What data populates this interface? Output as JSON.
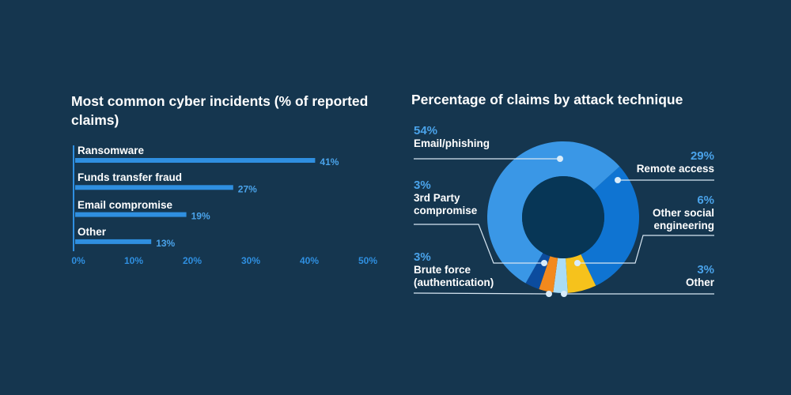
{
  "chart_data": [
    {
      "type": "bar",
      "orientation": "horizontal",
      "title": "Most common cyber incidents (% of reported claims)",
      "categories": [
        "Ransomware",
        "Funds transfer fraud",
        "Email compromise",
        "Other"
      ],
      "values": [
        41,
        27,
        19,
        13
      ],
      "data_labels": [
        "41%",
        "27%",
        "19%",
        "13%"
      ],
      "xlim": [
        0,
        50
      ],
      "x_ticks": [
        "0%",
        "10%",
        "20%",
        "30%",
        "40%",
        "50%"
      ],
      "grid": false,
      "color": "#2f8fe0"
    },
    {
      "type": "pie",
      "donut": true,
      "title": "Percentage of claims by attack technique",
      "slices": [
        {
          "label": "Email/phishing",
          "value": 54,
          "value_label": "54%",
          "color": "#3a97e6"
        },
        {
          "label": "Remote access",
          "value": 29,
          "value_label": "29%",
          "color": "#0f74d2"
        },
        {
          "label": "Other social engineering",
          "value": 6,
          "value_label": "6%",
          "color": "#f6c21c"
        },
        {
          "label": "Other",
          "value": 3,
          "value_label": "3%",
          "color": "#a9dcf6"
        },
        {
          "label": "Brute force (authentication)",
          "value": 3,
          "value_label": "3%",
          "color": "#f2891d"
        },
        {
          "label": "3rd Party compromise",
          "value": 3,
          "value_label": "3%",
          "color": "#0c4c9e"
        }
      ]
    }
  ]
}
